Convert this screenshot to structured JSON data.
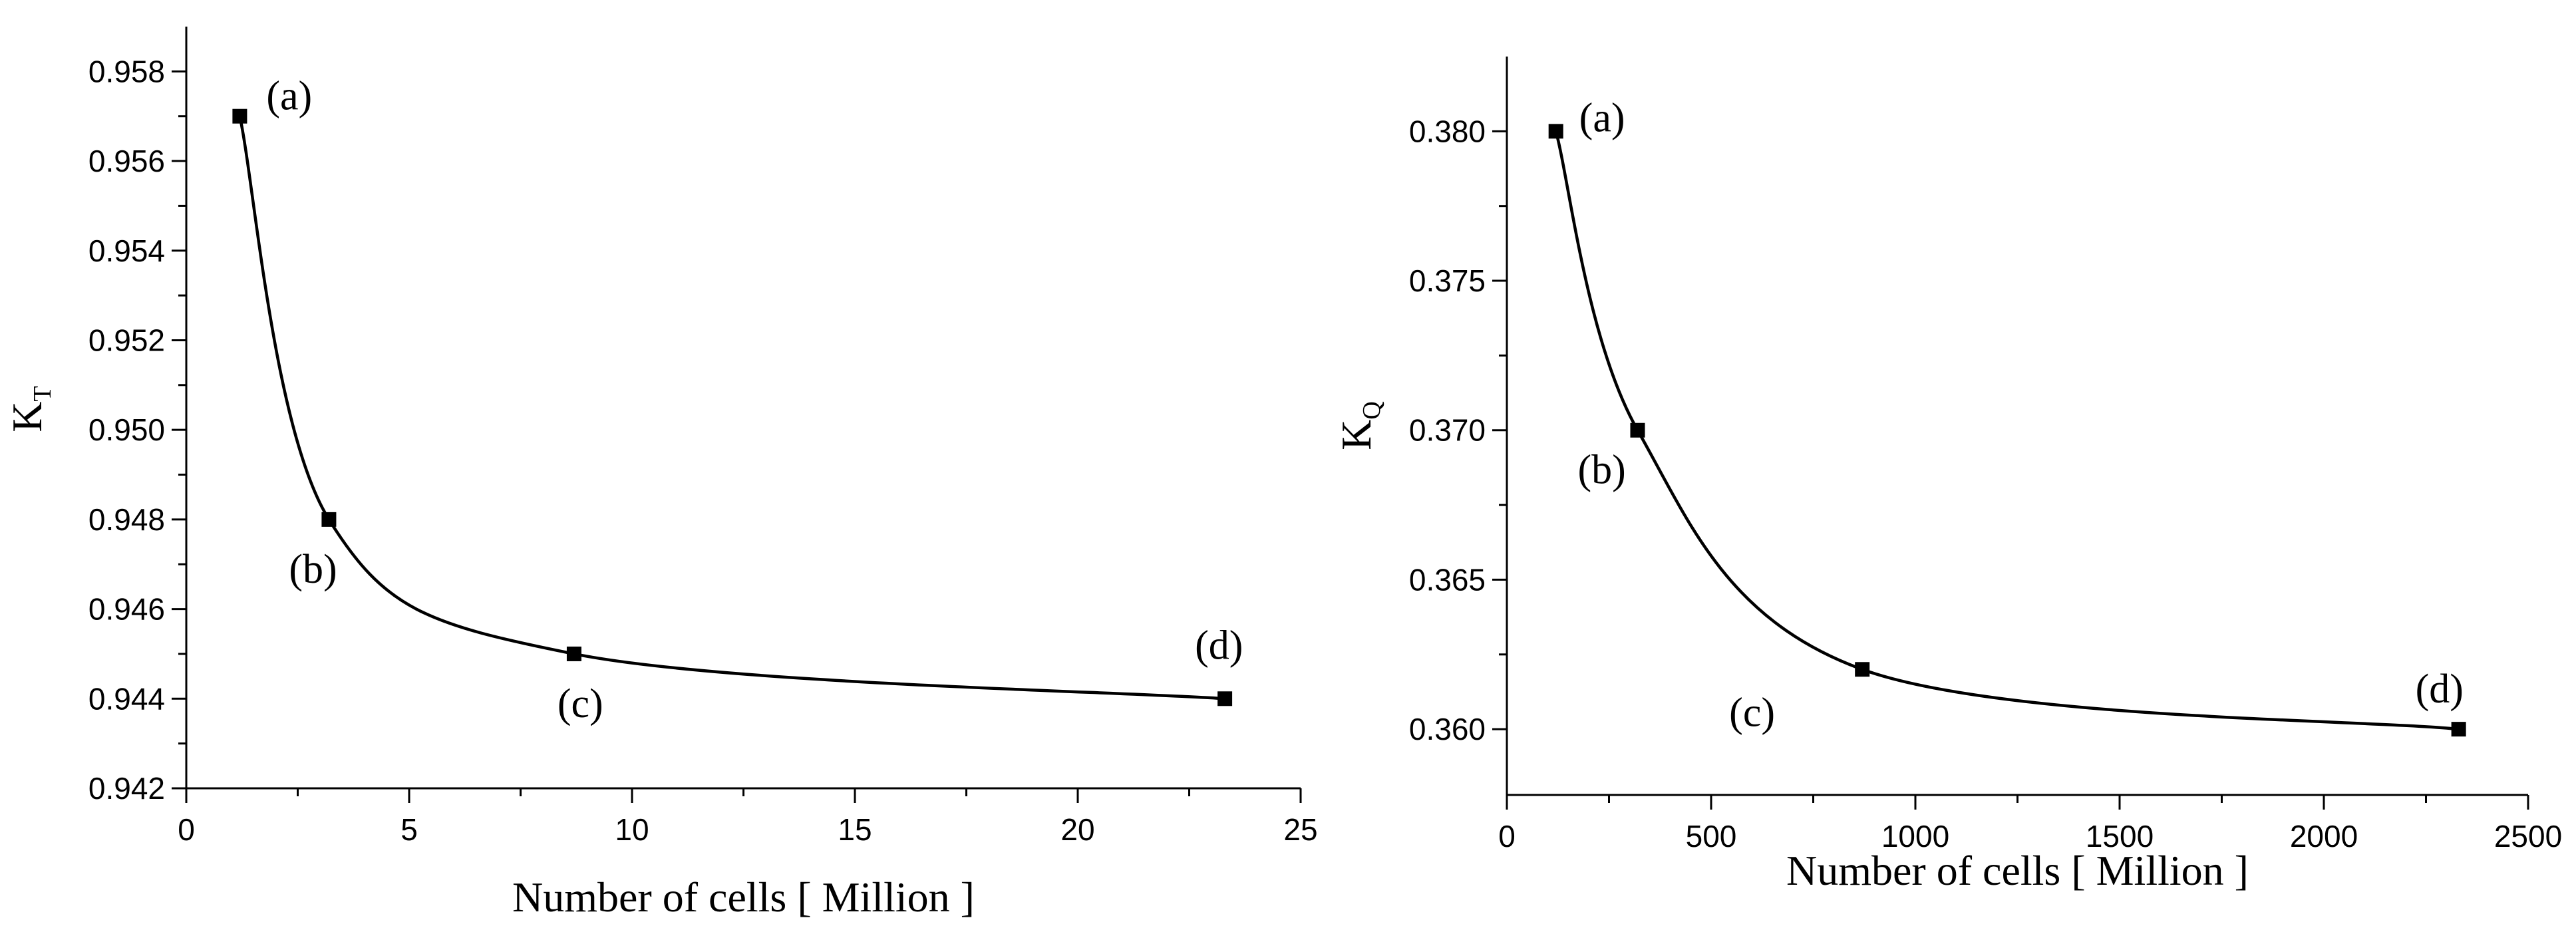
{
  "chart_data": [
    {
      "type": "line",
      "xlabel": "Number of cells [ Million ]",
      "ylabel": "K",
      "ylabel_sub": "T",
      "xlim": [
        0,
        25
      ],
      "ylim": [
        0.942,
        0.959
      ],
      "xticks": [
        0,
        5,
        10,
        15,
        20,
        25
      ],
      "xtick_labels": [
        "0",
        "5",
        "10",
        "15",
        "20",
        "25"
      ],
      "yticks": [
        0.942,
        0.944,
        0.946,
        0.948,
        0.95,
        0.952,
        0.954,
        0.956,
        0.958
      ],
      "ytick_labels": [
        "0.942",
        "0.944",
        "0.946",
        "0.948",
        "0.950",
        "0.952",
        "0.954",
        "0.956",
        "0.958"
      ],
      "grid": false,
      "series": [
        {
          "x": [
            1.2,
            3.2,
            8.7,
            23.3
          ],
          "y": [
            0.957,
            0.948,
            0.945,
            0.944
          ],
          "labels": [
            "(a)",
            "(b)",
            "(c)",
            "(d)"
          ]
        }
      ]
    },
    {
      "type": "line",
      "xlabel": "Number of cells [ Million ]",
      "ylabel": "K",
      "ylabel_sub": "Q",
      "xlim": [
        0,
        2500
      ],
      "ylim": [
        0.3578,
        0.3825
      ],
      "xticks": [
        0,
        500,
        1000,
        1500,
        2000,
        2500
      ],
      "xtick_labels": [
        "0",
        "500",
        "1000",
        "1500",
        "2000",
        "2500"
      ],
      "yticks": [
        0.36,
        0.365,
        0.37,
        0.375,
        0.38
      ],
      "ytick_labels": [
        "0.360",
        "0.365",
        "0.370",
        "0.375",
        "0.380"
      ],
      "grid": false,
      "series": [
        {
          "x": [
            120,
            320,
            870,
            2330
          ],
          "y": [
            0.38,
            0.37,
            0.362,
            0.36
          ],
          "labels": [
            "(a)",
            "(b)",
            "(c)",
            "(d)"
          ]
        }
      ]
    }
  ]
}
